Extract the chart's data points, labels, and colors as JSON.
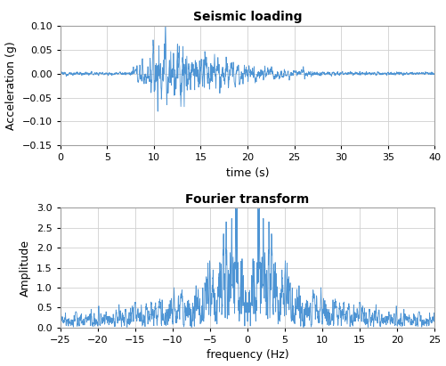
{
  "title1": "Seismic loading",
  "title2": "Fourier transform",
  "xlabel1": "time (s)",
  "ylabel1": "Acceleration (g)",
  "xlabel2": "frequency (Hz)",
  "ylabel2": "Amplitude",
  "xlim1": [
    0,
    40
  ],
  "ylim1": [
    -0.15,
    0.1
  ],
  "xlim2": [
    -25,
    25
  ],
  "ylim2": [
    0,
    3
  ],
  "yticks1": [
    -0.15,
    -0.1,
    -0.05,
    0,
    0.05,
    0.1
  ],
  "xticks1": [
    0,
    5,
    10,
    15,
    20,
    25,
    30,
    35,
    40
  ],
  "yticks2": [
    0,
    0.5,
    1.0,
    1.5,
    2.0,
    2.5,
    3.0
  ],
  "xticks2": [
    -25,
    -20,
    -15,
    -10,
    -5,
    0,
    5,
    10,
    15,
    20,
    25
  ],
  "line_color": "#4d94d4",
  "bg_color": "#ffffff",
  "grid_color": "#d0d0d0",
  "dt": 0.02,
  "duration": 40.0,
  "seed": 12345
}
